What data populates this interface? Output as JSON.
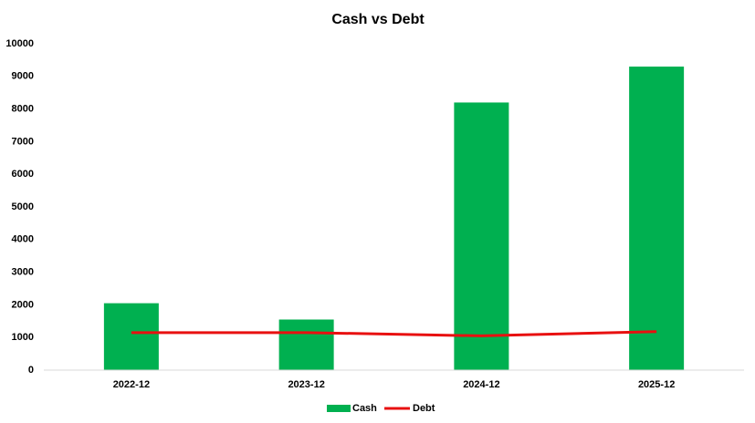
{
  "chart_data": {
    "type": "bar",
    "title": "Cash vs Debt",
    "categories": [
      "2022-12",
      "2023-12",
      "2024-12",
      "2025-12"
    ],
    "series": [
      {
        "name": "Cash",
        "type": "bar",
        "color": "#00b050",
        "values": [
          2050,
          1550,
          8200,
          9300
        ]
      },
      {
        "name": "Debt",
        "type": "line",
        "color": "#e81010",
        "values": [
          1150,
          1150,
          1050,
          1180
        ]
      }
    ],
    "ylim": [
      0,
      10000
    ],
    "yticks": [
      0,
      1000,
      2000,
      3000,
      4000,
      5000,
      6000,
      7000,
      8000,
      9000,
      10000
    ],
    "grid": false,
    "legend": "bottom"
  }
}
